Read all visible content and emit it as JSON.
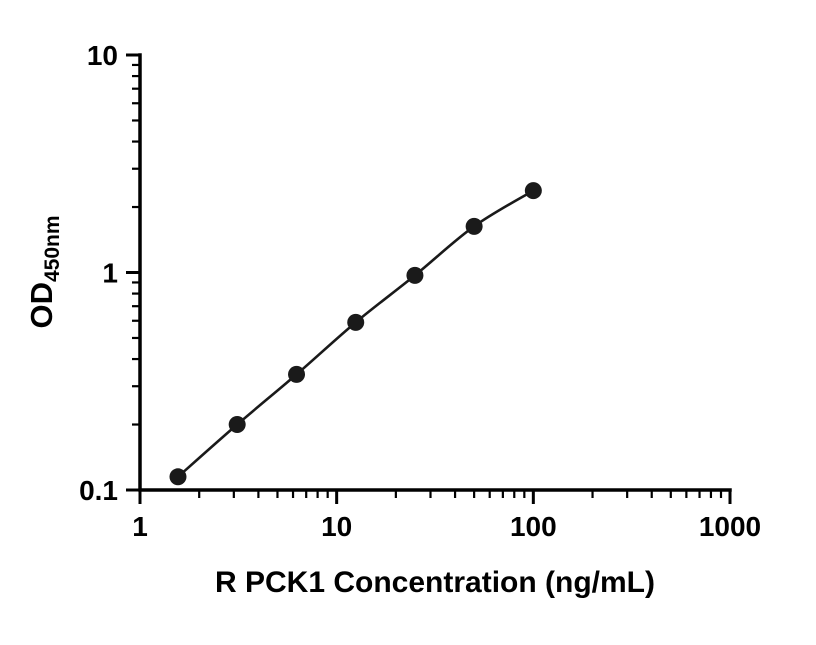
{
  "chart_data": {
    "type": "scatter",
    "title": "",
    "xlabel": "R PCK1 Concentration (ng/mL)",
    "ylabel_main": "OD",
    "ylabel_sub": "450nm",
    "x_scale": "log",
    "y_scale": "log",
    "xlim": [
      1,
      1000
    ],
    "ylim": [
      0.1,
      10
    ],
    "x_ticks": [
      "1",
      "10",
      "100",
      "1000"
    ],
    "y_ticks": [
      "0.1",
      "1",
      "10"
    ],
    "grid": false,
    "legend": "none",
    "x": [
      1.56,
      3.12,
      6.25,
      12.5,
      25,
      50,
      100
    ],
    "y": [
      0.115,
      0.2,
      0.34,
      0.59,
      0.97,
      1.63,
      2.38
    ],
    "marker_color": "#1a1a1a",
    "line_color": "#1a1a1a",
    "axis_color": "#000000"
  }
}
